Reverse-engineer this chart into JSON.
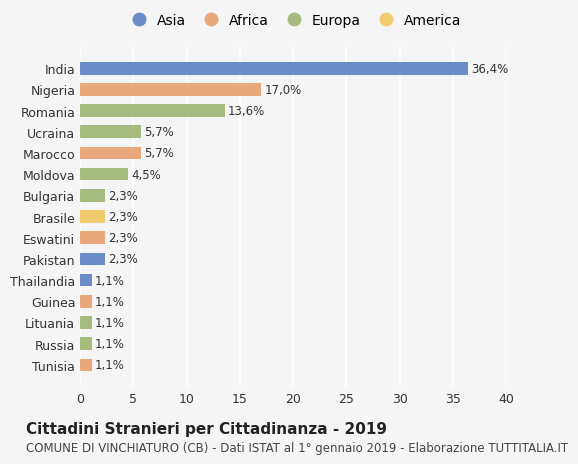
{
  "categories": [
    "India",
    "Nigeria",
    "Romania",
    "Ucraina",
    "Marocco",
    "Moldova",
    "Bulgaria",
    "Brasile",
    "Eswatini",
    "Pakistan",
    "Thailandia",
    "Guinea",
    "Lituania",
    "Russia",
    "Tunisia"
  ],
  "values": [
    36.4,
    17.0,
    13.6,
    5.7,
    5.7,
    4.5,
    2.3,
    2.3,
    2.3,
    2.3,
    1.1,
    1.1,
    1.1,
    1.1,
    1.1
  ],
  "labels": [
    "36,4%",
    "17,0%",
    "13,6%",
    "5,7%",
    "5,7%",
    "4,5%",
    "2,3%",
    "2,3%",
    "2,3%",
    "2,3%",
    "1,1%",
    "1,1%",
    "1,1%",
    "1,1%",
    "1,1%"
  ],
  "continents": [
    "Asia",
    "Africa",
    "Europa",
    "Europa",
    "Africa",
    "Europa",
    "Europa",
    "America",
    "Africa",
    "Asia",
    "Asia",
    "Africa",
    "Europa",
    "Europa",
    "Africa"
  ],
  "continent_colors": {
    "Asia": "#6a8dc7",
    "Africa": "#e8a87c",
    "Europa": "#a8bb7e",
    "America": "#f0cc6e"
  },
  "legend_order": [
    "Asia",
    "Africa",
    "Europa",
    "America"
  ],
  "title": "Cittadini Stranieri per Cittadinanza - 2019",
  "subtitle": "COMUNE DI VINCHIATURO (CB) - Dati ISTAT al 1° gennaio 2019 - Elaborazione TUTTITALIA.IT",
  "xlim": [
    0,
    40
  ],
  "xticks": [
    0,
    5,
    10,
    15,
    20,
    25,
    30,
    35,
    40
  ],
  "background_color": "#f5f5f5",
  "grid_color": "#ffffff",
  "bar_height": 0.6,
  "title_fontsize": 11,
  "subtitle_fontsize": 8.5,
  "tick_fontsize": 9,
  "label_fontsize": 8.5,
  "legend_fontsize": 10
}
